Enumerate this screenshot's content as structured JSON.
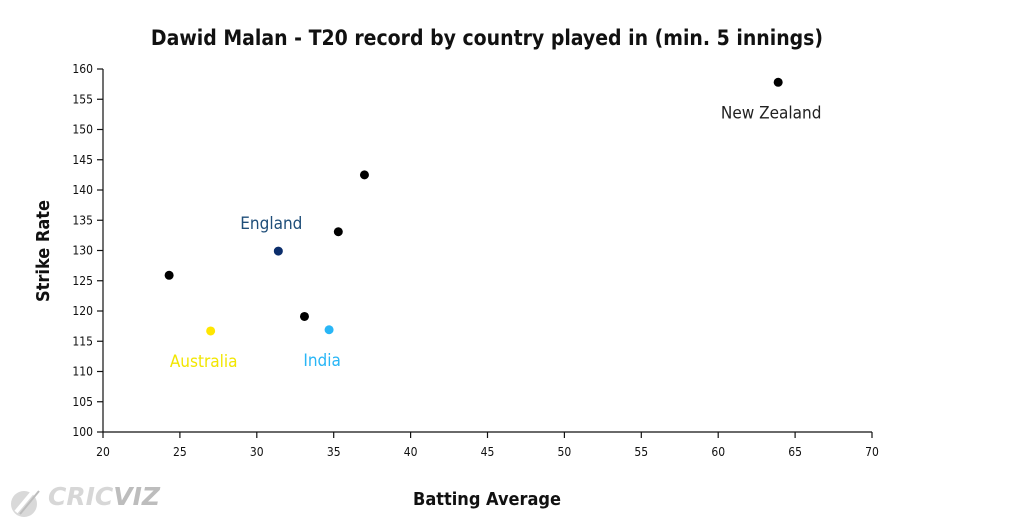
{
  "chart_data": {
    "type": "scatter",
    "title": "Dawid Malan - T20 record by country played in (min. 5 innings)",
    "xlabel": "Batting Average",
    "ylabel": "Strike Rate",
    "xlim": [
      20,
      70
    ],
    "ylim": [
      100,
      160
    ],
    "xticks": [
      "20",
      "25",
      "30",
      "35",
      "40",
      "45",
      "50",
      "55",
      "60",
      "65",
      "70"
    ],
    "yticks": [
      "100",
      "105",
      "110",
      "115",
      "120",
      "125",
      "130",
      "135",
      "140",
      "145",
      "150",
      "155",
      "160"
    ],
    "grid": false,
    "points": [
      {
        "label": "New Zealand",
        "x": 63.9,
        "y": 157.8,
        "color": "#000000",
        "label_color": "#222222",
        "label_pos": "below"
      },
      {
        "label": "",
        "x": 37.0,
        "y": 142.5,
        "color": "#000000"
      },
      {
        "label": "",
        "x": 35.3,
        "y": 133.1,
        "color": "#000000"
      },
      {
        "label": "England",
        "x": 31.4,
        "y": 129.9,
        "color": "#0b2d6b",
        "label_color": "#1f4e79",
        "label_pos": "above"
      },
      {
        "label": "",
        "x": 24.3,
        "y": 125.9,
        "color": "#000000"
      },
      {
        "label": "",
        "x": 33.1,
        "y": 119.1,
        "color": "#000000"
      },
      {
        "label": "India",
        "x": 34.7,
        "y": 116.9,
        "color": "#29b6f6",
        "label_color": "#29b6f6",
        "label_pos": "below"
      },
      {
        "label": "Australia",
        "x": 27.0,
        "y": 116.7,
        "color": "#ffe600",
        "label_color": "#f2e600",
        "label_pos": "below"
      }
    ]
  },
  "logo": {
    "text_a": "CRIC",
    "text_b": "VIZ"
  }
}
